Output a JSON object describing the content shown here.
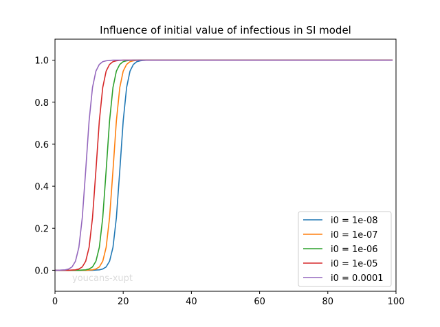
{
  "chart_data": {
    "type": "line",
    "title": "Influence of initial value of infectious in SI model",
    "xlabel": "",
    "ylabel": "",
    "xlim": [
      0,
      100
    ],
    "ylim": [
      -0.1,
      1.1
    ],
    "xticks": [
      "0",
      "20",
      "40",
      "60",
      "80",
      "100"
    ],
    "yticks": [
      "0.0",
      "0.2",
      "0.4",
      "0.6",
      "0.8",
      "1.0"
    ],
    "grid": false,
    "legend_position": "lower-right",
    "watermark": "youcans-xupt",
    "x": [
      0,
      1,
      2,
      3,
      4,
      5,
      6,
      7,
      8,
      9,
      10,
      11,
      12,
      13,
      14,
      15,
      16,
      17,
      18,
      19,
      20,
      21,
      22,
      23,
      24,
      25,
      26,
      27,
      28,
      29,
      30,
      40,
      50,
      60,
      70,
      80,
      90,
      99
    ],
    "series": [
      {
        "name": "i0 = 1e-08",
        "color": "#1f77b4",
        "values": [
          0.0,
          0.0,
          0.0,
          0.0,
          0.0,
          0.0,
          0.0,
          0.0,
          0.0,
          0.0,
          0.0,
          0.0,
          0.001,
          0.002,
          0.006,
          0.016,
          0.043,
          0.109,
          0.25,
          0.475,
          0.711,
          0.87,
          0.948,
          0.98,
          0.993,
          0.997,
          0.999,
          1.0,
          1.0,
          1.0,
          1.0,
          1.0,
          1.0,
          1.0,
          1.0,
          1.0,
          1.0,
          1.0
        ]
      },
      {
        "name": "i0 = 1e-07",
        "color": "#ff7f0e",
        "values": [
          0.0,
          0.0,
          0.0,
          0.0,
          0.0,
          0.0,
          0.0,
          0.0,
          0.0,
          0.0,
          0.001,
          0.002,
          0.006,
          0.016,
          0.043,
          0.109,
          0.25,
          0.475,
          0.711,
          0.87,
          0.948,
          0.98,
          0.993,
          0.997,
          0.999,
          1.0,
          1.0,
          1.0,
          1.0,
          1.0,
          1.0,
          1.0,
          1.0,
          1.0,
          1.0,
          1.0,
          1.0,
          1.0
        ]
      },
      {
        "name": "i0 = 1e-06",
        "color": "#2ca02c",
        "values": [
          0.0,
          0.0,
          0.0,
          0.0,
          0.0,
          0.0,
          0.0,
          0.0,
          0.001,
          0.002,
          0.006,
          0.016,
          0.043,
          0.109,
          0.25,
          0.475,
          0.711,
          0.87,
          0.948,
          0.98,
          0.993,
          0.997,
          0.999,
          1.0,
          1.0,
          1.0,
          1.0,
          1.0,
          1.0,
          1.0,
          1.0,
          1.0,
          1.0,
          1.0,
          1.0,
          1.0,
          1.0,
          1.0
        ]
      },
      {
        "name": "i0 = 1e-05",
        "color": "#d62728",
        "values": [
          0.0,
          0.0,
          0.0,
          0.0,
          0.0,
          0.001,
          0.002,
          0.006,
          0.016,
          0.043,
          0.109,
          0.25,
          0.475,
          0.711,
          0.87,
          0.948,
          0.98,
          0.993,
          0.997,
          0.999,
          1.0,
          1.0,
          1.0,
          1.0,
          1.0,
          1.0,
          1.0,
          1.0,
          1.0,
          1.0,
          1.0,
          1.0,
          1.0,
          1.0,
          1.0,
          1.0,
          1.0,
          1.0
        ]
      },
      {
        "name": "i0 = 0.0001",
        "color": "#9467bd",
        "values": [
          0.0,
          0.0,
          0.001,
          0.002,
          0.006,
          0.016,
          0.043,
          0.109,
          0.25,
          0.475,
          0.711,
          0.87,
          0.948,
          0.98,
          0.993,
          0.997,
          0.999,
          1.0,
          1.0,
          1.0,
          1.0,
          1.0,
          1.0,
          1.0,
          1.0,
          1.0,
          1.0,
          1.0,
          1.0,
          1.0,
          1.0,
          1.0,
          1.0,
          1.0,
          1.0,
          1.0,
          1.0,
          1.0
        ]
      }
    ]
  }
}
